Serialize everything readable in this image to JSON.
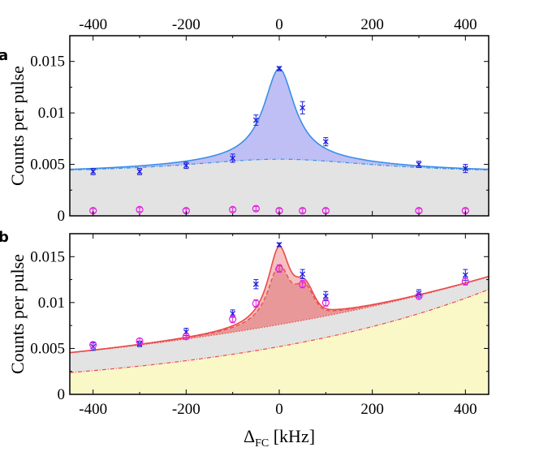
{
  "chart_data": [
    {
      "id": "a",
      "type": "scatter",
      "panel_label": "a",
      "ylabel": "Counts per pulse",
      "xlabel": "",
      "xlim": [
        -450,
        450
      ],
      "ylim": [
        0,
        0.0175
      ],
      "xticks": [
        -400,
        -200,
        0,
        200,
        400
      ],
      "xtick_labels": [
        "-400",
        "-200",
        "0",
        "200",
        "400"
      ],
      "xticks_top": true,
      "yticks": [
        0,
        0.005,
        0.01,
        0.015
      ],
      "ytick_labels": [
        "0",
        "0.005",
        "0.01",
        "0.015"
      ],
      "colors": {
        "blue": "#1a1ae0",
        "magenta": "#e020e0",
        "fit": "#3a8fe8",
        "fill": "#b8b8f4",
        "bg": "#e3e3e3"
      },
      "fit": {
        "baseline_center": 0.0055,
        "baseline_edge": 0.0041,
        "peak_amp": 0.0088,
        "peak_width": 40
      },
      "series": [
        {
          "name": "blue",
          "x": [
            -400,
            -300,
            -200,
            -100,
            -50,
            0,
            50,
            100,
            300,
            400
          ],
          "y": [
            0.0043,
            0.0043,
            0.0049,
            0.0056,
            0.0093,
            0.0143,
            0.0105,
            0.0072,
            0.005,
            0.0046
          ],
          "err": [
            0.0003,
            0.0003,
            0.0003,
            0.0004,
            0.0005,
            0.0002,
            0.0006,
            0.0004,
            0.0003,
            0.0004
          ]
        },
        {
          "name": "magenta",
          "x": [
            -400,
            -300,
            -200,
            -100,
            -50,
            0,
            50,
            100,
            300,
            400
          ],
          "y": [
            0.0005,
            0.0006,
            0.0005,
            0.0006,
            0.0007,
            0.0005,
            0.0005,
            0.0005,
            0.0005,
            0.0005
          ],
          "err": [
            0.0002,
            0.0002,
            0.0002,
            0.0002,
            0.0002,
            0.0002,
            0.0002,
            0.0002,
            0.0002,
            0.0002
          ]
        }
      ]
    },
    {
      "id": "b",
      "type": "scatter",
      "panel_label": "b",
      "ylabel": "Counts per pulse",
      "xlabel": "Δ",
      "xlabel_sub": "FC",
      "xlabel_unit": " [kHz]",
      "xlim": [
        -450,
        450
      ],
      "ylim": [
        0,
        0.0175
      ],
      "xticks": [
        -400,
        -200,
        0,
        200,
        400
      ],
      "xtick_labels": [
        "-400",
        "-200",
        "0",
        "200",
        "400"
      ],
      "yticks": [
        0,
        0.005,
        0.01,
        0.015
      ],
      "ytick_labels": [
        "0",
        "0.005",
        "0.01",
        "0.015"
      ],
      "colors": {
        "blue": "#1a1ae0",
        "magenta": "#e020e0",
        "fit": "#ec4a4a",
        "fill": "#e89898",
        "bg": "#e3e3e3",
        "yellow": "#fbf8c8"
      },
      "fit": {
        "yellow_exp": {
          "a": 0.0052,
          "k": 0.00175
        },
        "grey_exp": {
          "a": 0.0076,
          "k": 0.00116
        },
        "peak_solid": {
          "amp": 0.0085,
          "width": 30,
          "b_amp": 0.0025,
          "b_center": 55,
          "b_width": 18
        },
        "peak_dashed": {
          "amp": 0.0065,
          "width": 30,
          "b_amp": 0.0025,
          "b_center": 55,
          "b_width": 18
        }
      },
      "series": [
        {
          "name": "blue",
          "x": [
            -400,
            -300,
            -200,
            -100,
            -50,
            0,
            50,
            100,
            300,
            400
          ],
          "y": [
            0.0052,
            0.0055,
            0.0068,
            0.0088,
            0.012,
            0.0163,
            0.0131,
            0.0107,
            0.011,
            0.013
          ],
          "err": [
            0.0004,
            0.0003,
            0.0004,
            0.0004,
            0.0005,
            0.0002,
            0.0005,
            0.0005,
            0.0004,
            0.0006
          ]
        },
        {
          "name": "magenta",
          "x": [
            -400,
            -300,
            -200,
            -100,
            -50,
            0,
            50,
            100,
            300,
            400
          ],
          "y": [
            0.0054,
            0.0058,
            0.0063,
            0.0082,
            0.0099,
            0.0137,
            0.012,
            0.01,
            0.0107,
            0.0123
          ],
          "err": [
            0.0003,
            0.0003,
            0.0003,
            0.0004,
            0.0004,
            0.0004,
            0.0004,
            0.0004,
            0.0003,
            0.0004
          ]
        }
      ]
    }
  ]
}
